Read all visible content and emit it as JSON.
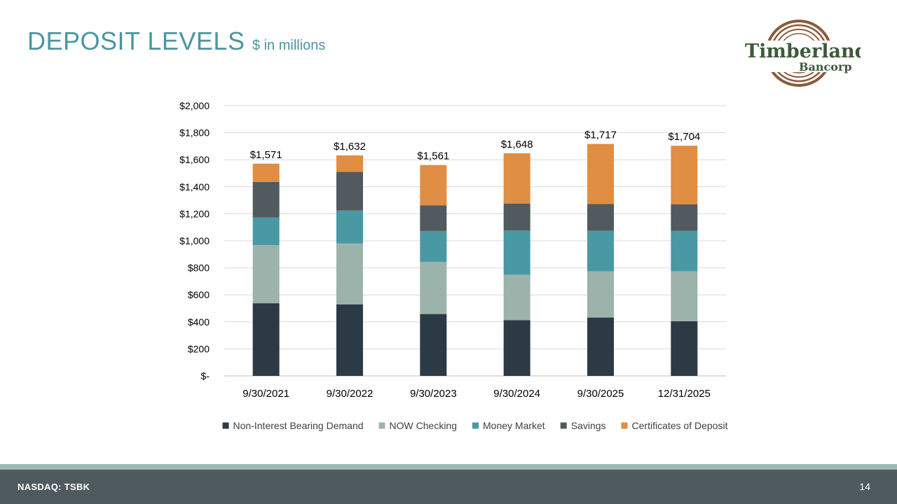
{
  "slide": {
    "title": "DEPOSIT LEVELS",
    "subtitle": "$ in millions",
    "logo_text_line1": "Timberland",
    "logo_text_line2": "Bancorp",
    "footer_ticker": "NASDAQ: TSBK",
    "page_number": "14"
  },
  "colors": {
    "title": "#4a96a0",
    "non_interest": "#2c3a45",
    "now_checking": "#9cb3ab",
    "money_market": "#4899a3",
    "savings": "#515a5e",
    "cds": "#e08e43"
  },
  "chart_data": {
    "type": "bar",
    "stacked": true,
    "categories": [
      "9/30/2021",
      "9/30/2022",
      "9/30/2023",
      "9/30/2024",
      "9/30/2025",
      "12/31/2025"
    ],
    "series": [
      {
        "name": "Non-Interest Bearing Demand",
        "color": "#2c3a45",
        "values": [
          538,
          530,
          458,
          412,
          432,
          405
        ]
      },
      {
        "name": "NOW Checking",
        "color": "#9cb3ab",
        "values": [
          430,
          450,
          385,
          337,
          342,
          370
        ]
      },
      {
        "name": "Money Market",
        "color": "#4899a3",
        "values": [
          205,
          245,
          230,
          327,
          300,
          300
        ]
      },
      {
        "name": "Savings",
        "color": "#515a5e",
        "values": [
          263,
          285,
          190,
          200,
          198,
          196
        ]
      },
      {
        "name": "Certificates of Deposit",
        "color": "#e08e43",
        "values": [
          135,
          122,
          298,
          372,
          445,
          433
        ]
      }
    ],
    "totals": [
      "$1,571",
      "$1,632",
      "$1,561",
      "$1,648",
      "$1,717",
      "$1,704"
    ],
    "total_values": [
      1571,
      1632,
      1561,
      1648,
      1717,
      1704
    ],
    "ylim": [
      0,
      2000
    ],
    "yticks": [
      0,
      200,
      400,
      600,
      800,
      1000,
      1200,
      1400,
      1600,
      1800,
      2000
    ],
    "ytick_labels": [
      "$-",
      "$200",
      "$400",
      "$600",
      "$800",
      "$1,000",
      "$1,200",
      "$1,400",
      "$1,600",
      "$1,800",
      "$2,000"
    ],
    "grid": true,
    "legend_position": "bottom",
    "title": "",
    "xlabel": "",
    "ylabel": ""
  }
}
